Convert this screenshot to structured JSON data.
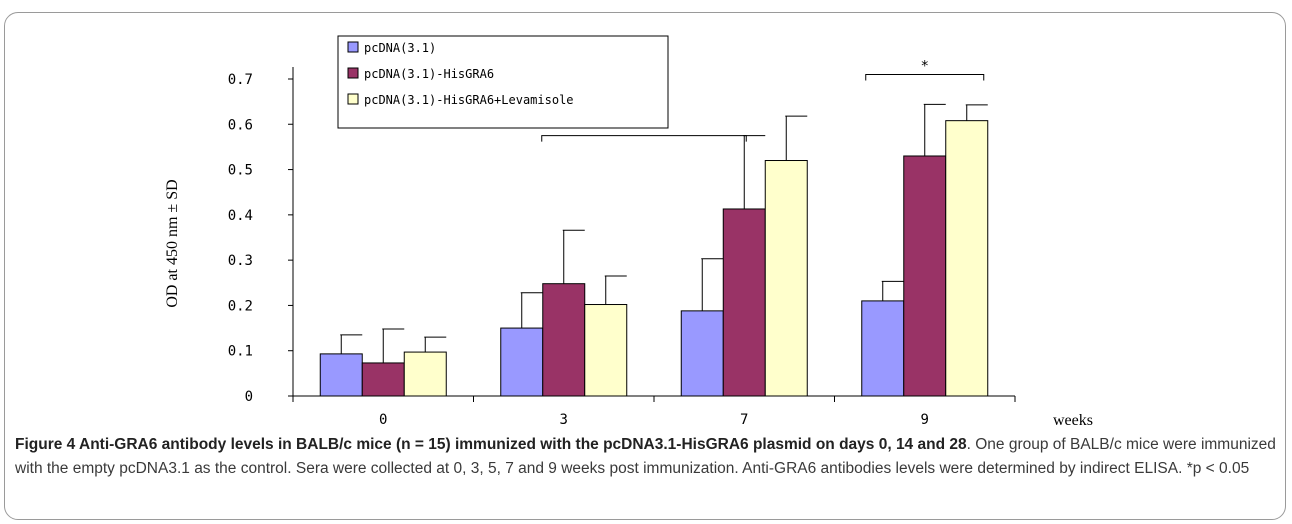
{
  "figure": {
    "caption_title": "Figure 4 Anti-GRA6 antibody levels in BALB/c mice (n = 15) immunized with the pcDNA3.1-HisGRA6 plasmid on days 0, 14 and 28",
    "caption_title_end": ".",
    "caption_body": "One group of BALB/c mice were immunized with the empty pcDNA3.1 as the control. Sera were collected at 0, 3, 5, 7 and 9 weeks post immunization. Anti-GRA6 antibodies levels were determined by indirect ELISA. *p < 0.05"
  },
  "chart_data": {
    "type": "bar",
    "title": "",
    "xlabel": "weeks",
    "ylabel": "OD at 450 nm ± SD",
    "categories": [
      "0",
      "3",
      "7",
      "9"
    ],
    "ylim": [
      0,
      0.7
    ],
    "yticks": [
      "0",
      "0.1",
      "0.2",
      "0.3",
      "0.4",
      "0.5",
      "0.6",
      "0.7"
    ],
    "grid": false,
    "legend_position": "top-left",
    "series": [
      {
        "name": "pcDNA(3.1)",
        "color": "#9999ff",
        "values": [
          0.093,
          0.15,
          0.188,
          0.21
        ],
        "errors": [
          0.042,
          0.078,
          0.115,
          0.043
        ]
      },
      {
        "name": "pcDNA(3.1)-HisGRA6",
        "color": "#993366",
        "values": [
          0.073,
          0.248,
          0.413,
          0.53
        ],
        "errors": [
          0.075,
          0.118,
          0.162,
          0.114
        ]
      },
      {
        "name": "pcDNA(3.1)-HisGRA6+Levamisole",
        "color": "#ffffcc",
        "values": [
          0.097,
          0.202,
          0.52,
          0.608
        ],
        "errors": [
          0.033,
          0.063,
          0.098,
          0.035
        ]
      }
    ],
    "annotations": [
      {
        "label": "*",
        "from_category": "3",
        "to_category": "7",
        "level": 0.575
      },
      {
        "label": "*",
        "from_category": "9",
        "to_category": "9",
        "level": 0.71
      }
    ]
  }
}
